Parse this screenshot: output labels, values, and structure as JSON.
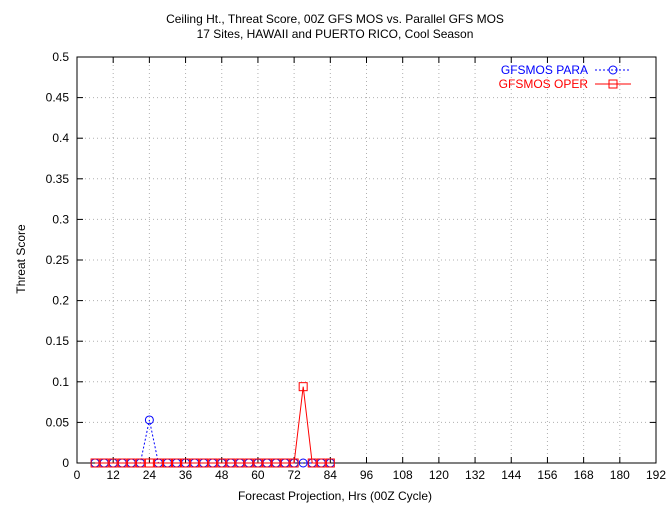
{
  "chart_data": {
    "type": "line",
    "title": "Ceiling Ht., Threat Score, 00Z GFS MOS vs. Parallel GFS MOS",
    "subtitle": "17 Sites, HAWAII and PUERTO RICO, Cool Season",
    "xlabel": "Forecast Projection, Hrs (00Z Cycle)",
    "ylabel": "Threat Score",
    "xlim": [
      0,
      192
    ],
    "ylim": [
      0,
      0.5
    ],
    "xticks": [
      "0",
      "12",
      "24",
      "36",
      "48",
      "60",
      "72",
      "84",
      "96",
      "108",
      "120",
      "132",
      "144",
      "156",
      "168",
      "180",
      "192"
    ],
    "yticks": [
      "0",
      "0.05",
      "0.1",
      "0.15",
      "0.2",
      "0.25",
      "0.3",
      "0.35",
      "0.4",
      "0.45",
      "0.5"
    ],
    "grid": true,
    "legend_position": "top-right",
    "x": [
      6,
      9,
      12,
      15,
      18,
      21,
      24,
      27,
      30,
      33,
      36,
      39,
      42,
      45,
      48,
      51,
      54,
      57,
      60,
      63,
      66,
      69,
      72,
      75,
      78,
      81,
      84
    ],
    "series": [
      {
        "name": "GFSMOS PARA",
        "color": "#0000ff",
        "marker": "circle",
        "line_style": "dotted",
        "values": [
          0,
          0,
          0,
          0,
          0,
          0,
          0.053,
          0,
          0,
          0,
          0,
          0,
          0,
          0,
          0,
          0,
          0,
          0,
          0,
          0,
          0,
          0,
          0,
          0,
          0,
          0,
          0
        ]
      },
      {
        "name": "GFSMOS OPER",
        "color": "#ff0000",
        "marker": "square",
        "line_style": "solid",
        "values": [
          0,
          0,
          0,
          0,
          0,
          0,
          0,
          0,
          0,
          0,
          0,
          0,
          0,
          0,
          0,
          0,
          0,
          0,
          0,
          0,
          0,
          0,
          0,
          0.094,
          0,
          0,
          0
        ]
      }
    ]
  }
}
